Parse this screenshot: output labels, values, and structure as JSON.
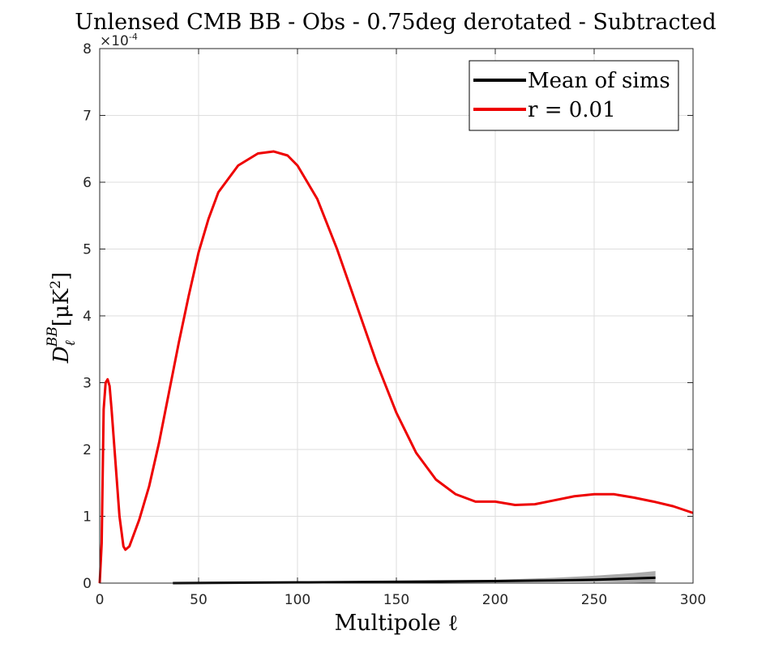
{
  "chart_data": {
    "type": "line",
    "title": "Unlensed CMB BB - Obs - 0.75deg derotated - Subtracted",
    "xlabel": "Multipole ℓ",
    "ylabel": {
      "main": "D",
      "sub": "ℓ",
      "sup": "BB",
      "unit": "[μK",
      "unit_sup": "2",
      "close": "]"
    },
    "y_exponent": {
      "base": "×10",
      "power": "-4"
    },
    "xlim": [
      0,
      300
    ],
    "ylim": [
      0,
      8
    ],
    "xticks": [
      0,
      50,
      100,
      150,
      200,
      250,
      300
    ],
    "yticks": [
      0,
      1,
      2,
      3,
      4,
      5,
      6,
      7,
      8
    ],
    "grid": true,
    "legend_position": "upper right",
    "series": [
      {
        "name": "Mean of sims",
        "color": "#000000",
        "x": [
          37,
          100,
          150,
          200,
          230,
          250,
          270,
          281
        ],
        "values": [
          0.0,
          0.01,
          0.02,
          0.03,
          0.04,
          0.05,
          0.07,
          0.08
        ]
      },
      {
        "name": "r = 0.01",
        "color": "#ee0000",
        "x": [
          0,
          1,
          2,
          3,
          4,
          5,
          6,
          8,
          10,
          12,
          13,
          15,
          20,
          25,
          30,
          35,
          40,
          45,
          50,
          55,
          60,
          70,
          80,
          88,
          95,
          100,
          110,
          120,
          130,
          140,
          150,
          160,
          170,
          180,
          190,
          200,
          210,
          220,
          230,
          240,
          250,
          260,
          270,
          280,
          290,
          300
        ],
        "values": [
          0,
          0.6,
          2.6,
          3.0,
          3.05,
          2.95,
          2.6,
          1.8,
          1.0,
          0.55,
          0.5,
          0.55,
          0.95,
          1.45,
          2.1,
          2.85,
          3.6,
          4.3,
          4.95,
          5.45,
          5.85,
          6.25,
          6.43,
          6.46,
          6.4,
          6.25,
          5.75,
          5.0,
          4.15,
          3.3,
          2.55,
          1.95,
          1.55,
          1.33,
          1.22,
          1.22,
          1.17,
          1.18,
          1.24,
          1.3,
          1.33,
          1.33,
          1.28,
          1.22,
          1.15,
          1.05
        ]
      }
    ],
    "error_band": {
      "color": "#aaaaaa",
      "x": [
        37,
        150,
        200,
        230,
        250,
        270,
        281
      ],
      "upper": [
        0.01,
        0.03,
        0.05,
        0.08,
        0.11,
        0.15,
        0.18
      ],
      "lower": [
        0.0,
        0.01,
        0.02,
        0.02,
        0.02,
        0.01,
        0.0
      ]
    }
  }
}
